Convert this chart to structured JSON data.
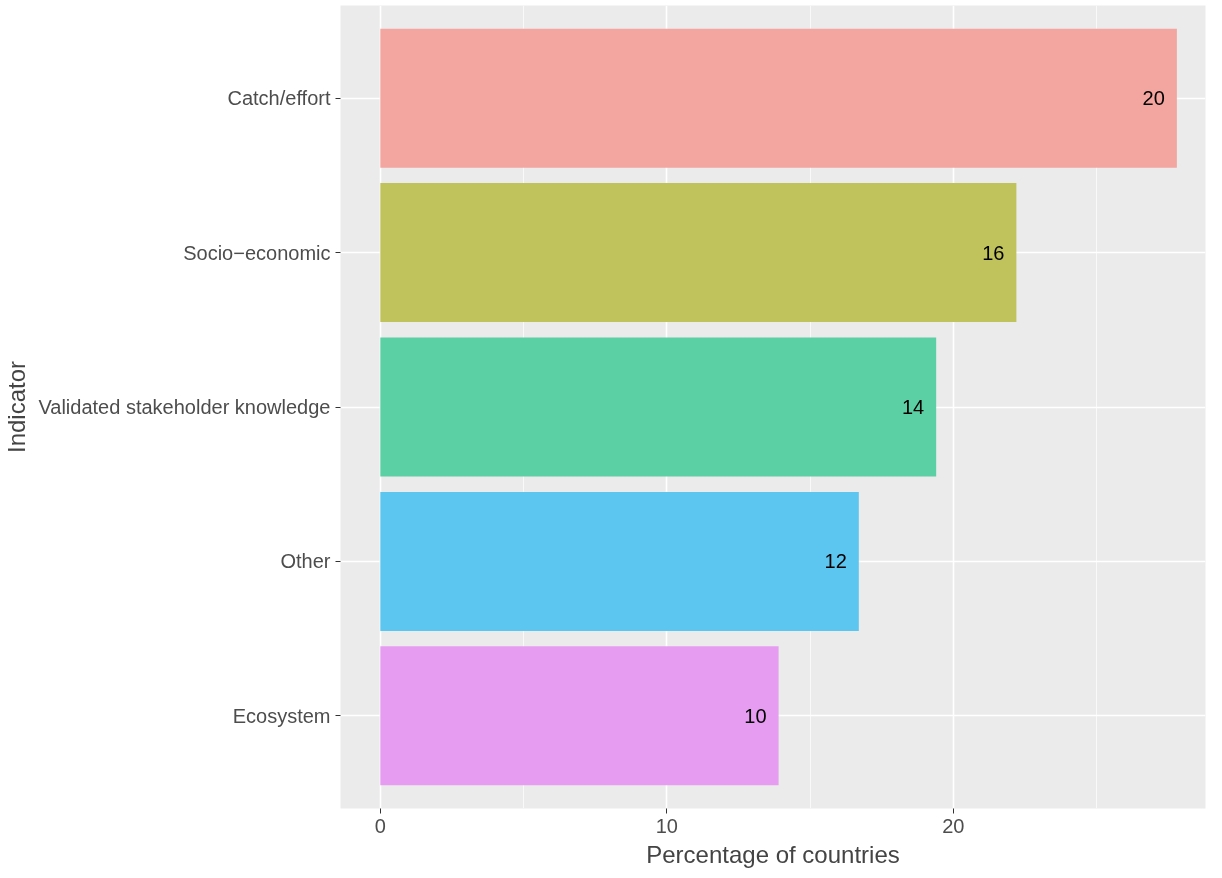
{
  "chart_data": {
    "type": "bar",
    "orientation": "horizontal",
    "xlabel": "Percentage of countries",
    "ylabel": "Indicator",
    "categories": [
      "Catch/effort",
      "Socio−economic",
      "Validated stakeholder knowledge",
      "Other",
      "Ecosystem"
    ],
    "values": [
      27.8,
      22.2,
      19.4,
      16.7,
      13.9
    ],
    "colors": [
      "#f3a59f",
      "#c0c25c",
      "#5cd0a5",
      "#5cc6f0",
      "#e69cf0"
    ],
    "annotations": [
      {
        "text": "20",
        "x": 27.8,
        "y": "Catch/effort"
      },
      {
        "text": "16",
        "x": 22.2,
        "y": "Socio−economic"
      },
      {
        "text": "14",
        "x": 19.4,
        "y": "Validated stakeholder knowledge"
      },
      {
        "text": "12",
        "x": 16.7,
        "y": "Other"
      },
      {
        "text": "10",
        "x": 13.9,
        "y": "Ecosystem"
      }
    ],
    "xlim": [
      -1.39,
      28.8
    ],
    "xticks": [
      0,
      10,
      20
    ],
    "grid": true
  }
}
